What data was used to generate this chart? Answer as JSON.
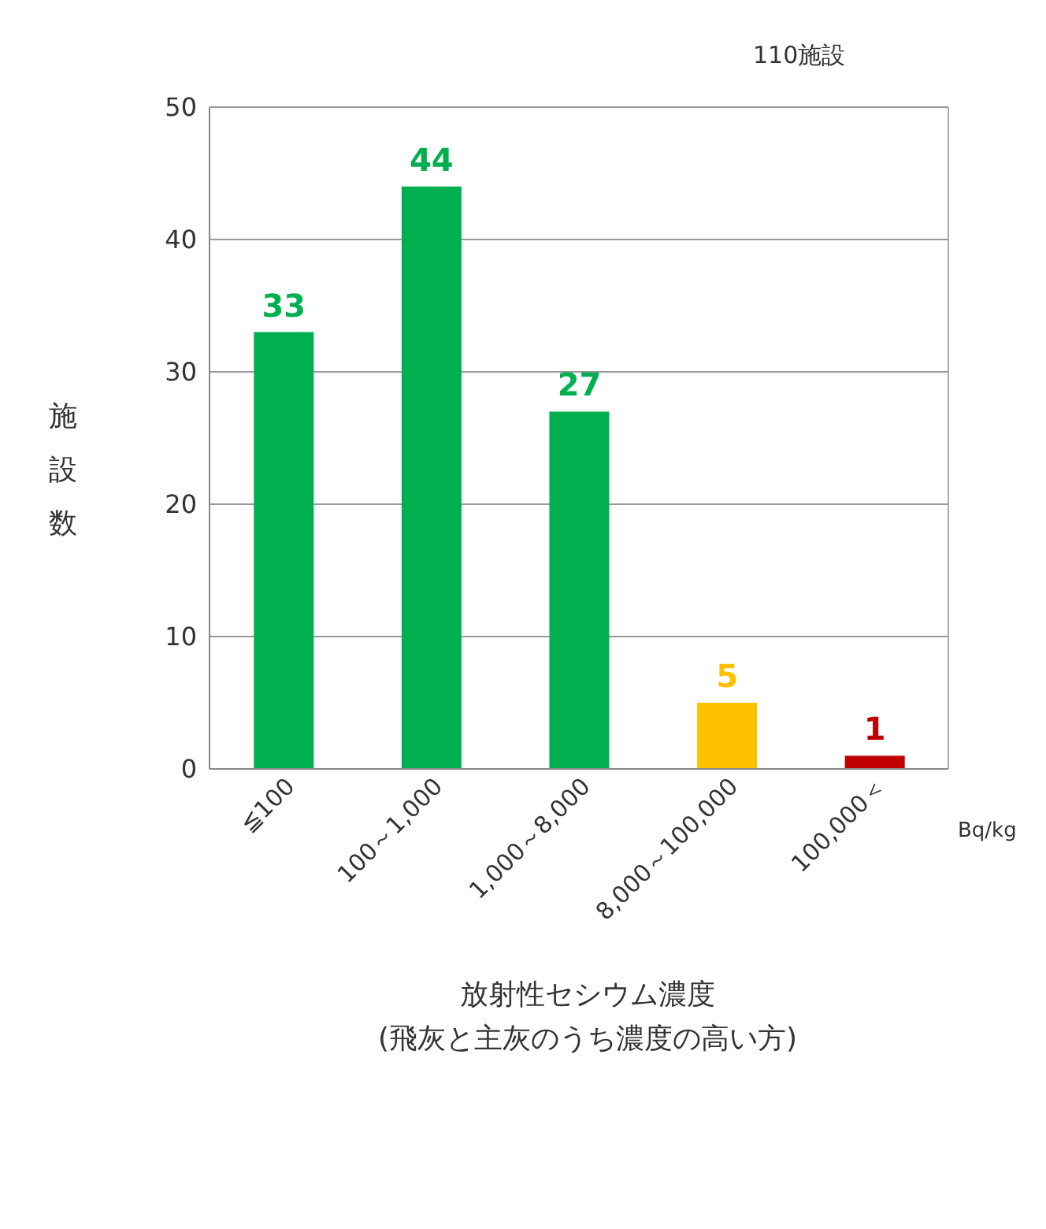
{
  "chart_data": {
    "type": "bar",
    "categories": [
      "≦100",
      "100～1,000",
      "1,000～8,000",
      "8,000～100,000",
      "100,000＜"
    ],
    "values": [
      33,
      44,
      27,
      5,
      1
    ],
    "colors": [
      "#00b050",
      "#00b050",
      "#00b050",
      "#ffc000",
      "#c00000"
    ],
    "ylim": [
      0,
      50
    ],
    "yticks": [
      0,
      10,
      20,
      30,
      40,
      50
    ],
    "grid": "y",
    "data_labels": true,
    "ylabel": "施設数",
    "xlabel": "放射性セシウム濃度\n(飛灰と主灰のうち濃度の高い方)",
    "annotations": [
      "110施設",
      "Bq/kg"
    ]
  }
}
